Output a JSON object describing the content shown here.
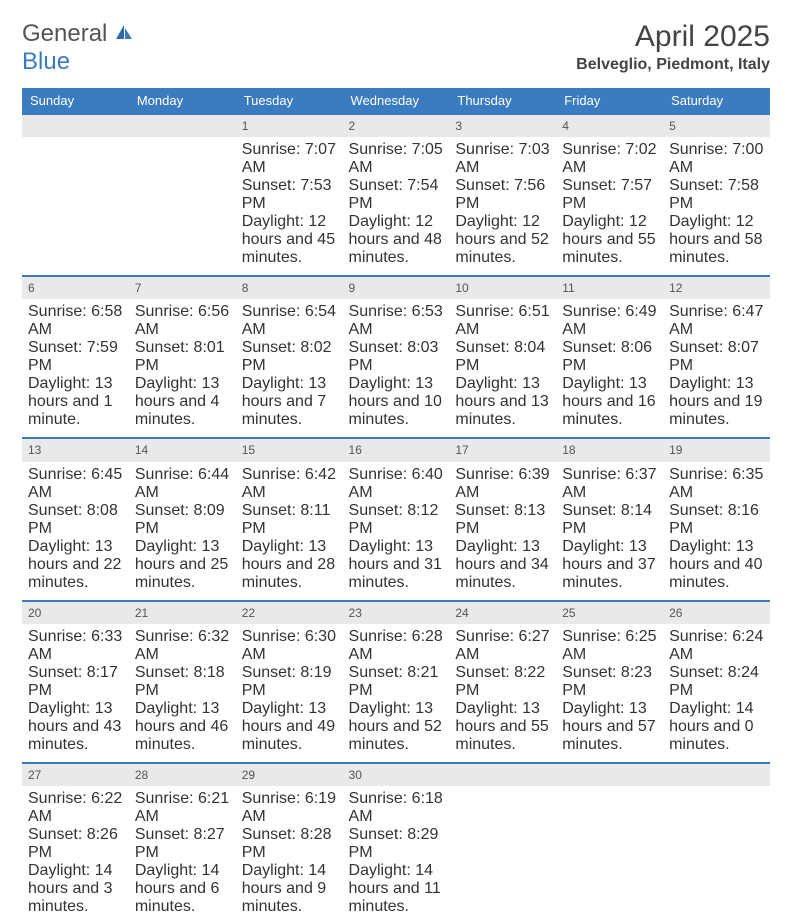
{
  "logo": {
    "text1": "General",
    "text2": "Blue"
  },
  "title": "April 2025",
  "location": "Belveglio, Piedmont, Italy",
  "colors": {
    "header_bg": "#3b7bbf",
    "daynum_bg": "#e9e9e9",
    "text": "#333333",
    "title": "#444444"
  },
  "day_headers": [
    "Sunday",
    "Monday",
    "Tuesday",
    "Wednesday",
    "Thursday",
    "Friday",
    "Saturday"
  ],
  "weeks": [
    [
      null,
      null,
      {
        "n": "1",
        "sr": "7:07 AM",
        "ss": "7:53 PM",
        "dl": "12 hours and 45 minutes."
      },
      {
        "n": "2",
        "sr": "7:05 AM",
        "ss": "7:54 PM",
        "dl": "12 hours and 48 minutes."
      },
      {
        "n": "3",
        "sr": "7:03 AM",
        "ss": "7:56 PM",
        "dl": "12 hours and 52 minutes."
      },
      {
        "n": "4",
        "sr": "7:02 AM",
        "ss": "7:57 PM",
        "dl": "12 hours and 55 minutes."
      },
      {
        "n": "5",
        "sr": "7:00 AM",
        "ss": "7:58 PM",
        "dl": "12 hours and 58 minutes."
      }
    ],
    [
      {
        "n": "6",
        "sr": "6:58 AM",
        "ss": "7:59 PM",
        "dl": "13 hours and 1 minute."
      },
      {
        "n": "7",
        "sr": "6:56 AM",
        "ss": "8:01 PM",
        "dl": "13 hours and 4 minutes."
      },
      {
        "n": "8",
        "sr": "6:54 AM",
        "ss": "8:02 PM",
        "dl": "13 hours and 7 minutes."
      },
      {
        "n": "9",
        "sr": "6:53 AM",
        "ss": "8:03 PM",
        "dl": "13 hours and 10 minutes."
      },
      {
        "n": "10",
        "sr": "6:51 AM",
        "ss": "8:04 PM",
        "dl": "13 hours and 13 minutes."
      },
      {
        "n": "11",
        "sr": "6:49 AM",
        "ss": "8:06 PM",
        "dl": "13 hours and 16 minutes."
      },
      {
        "n": "12",
        "sr": "6:47 AM",
        "ss": "8:07 PM",
        "dl": "13 hours and 19 minutes."
      }
    ],
    [
      {
        "n": "13",
        "sr": "6:45 AM",
        "ss": "8:08 PM",
        "dl": "13 hours and 22 minutes."
      },
      {
        "n": "14",
        "sr": "6:44 AM",
        "ss": "8:09 PM",
        "dl": "13 hours and 25 minutes."
      },
      {
        "n": "15",
        "sr": "6:42 AM",
        "ss": "8:11 PM",
        "dl": "13 hours and 28 minutes."
      },
      {
        "n": "16",
        "sr": "6:40 AM",
        "ss": "8:12 PM",
        "dl": "13 hours and 31 minutes."
      },
      {
        "n": "17",
        "sr": "6:39 AM",
        "ss": "8:13 PM",
        "dl": "13 hours and 34 minutes."
      },
      {
        "n": "18",
        "sr": "6:37 AM",
        "ss": "8:14 PM",
        "dl": "13 hours and 37 minutes."
      },
      {
        "n": "19",
        "sr": "6:35 AM",
        "ss": "8:16 PM",
        "dl": "13 hours and 40 minutes."
      }
    ],
    [
      {
        "n": "20",
        "sr": "6:33 AM",
        "ss": "8:17 PM",
        "dl": "13 hours and 43 minutes."
      },
      {
        "n": "21",
        "sr": "6:32 AM",
        "ss": "8:18 PM",
        "dl": "13 hours and 46 minutes."
      },
      {
        "n": "22",
        "sr": "6:30 AM",
        "ss": "8:19 PM",
        "dl": "13 hours and 49 minutes."
      },
      {
        "n": "23",
        "sr": "6:28 AM",
        "ss": "8:21 PM",
        "dl": "13 hours and 52 minutes."
      },
      {
        "n": "24",
        "sr": "6:27 AM",
        "ss": "8:22 PM",
        "dl": "13 hours and 55 minutes."
      },
      {
        "n": "25",
        "sr": "6:25 AM",
        "ss": "8:23 PM",
        "dl": "13 hours and 57 minutes."
      },
      {
        "n": "26",
        "sr": "6:24 AM",
        "ss": "8:24 PM",
        "dl": "14 hours and 0 minutes."
      }
    ],
    [
      {
        "n": "27",
        "sr": "6:22 AM",
        "ss": "8:26 PM",
        "dl": "14 hours and 3 minutes."
      },
      {
        "n": "28",
        "sr": "6:21 AM",
        "ss": "8:27 PM",
        "dl": "14 hours and 6 minutes."
      },
      {
        "n": "29",
        "sr": "6:19 AM",
        "ss": "8:28 PM",
        "dl": "14 hours and 9 minutes."
      },
      {
        "n": "30",
        "sr": "6:18 AM",
        "ss": "8:29 PM",
        "dl": "14 hours and 11 minutes."
      },
      null,
      null,
      null
    ]
  ],
  "labels": {
    "sunrise": "Sunrise:",
    "sunset": "Sunset:",
    "daylight": "Daylight:"
  }
}
